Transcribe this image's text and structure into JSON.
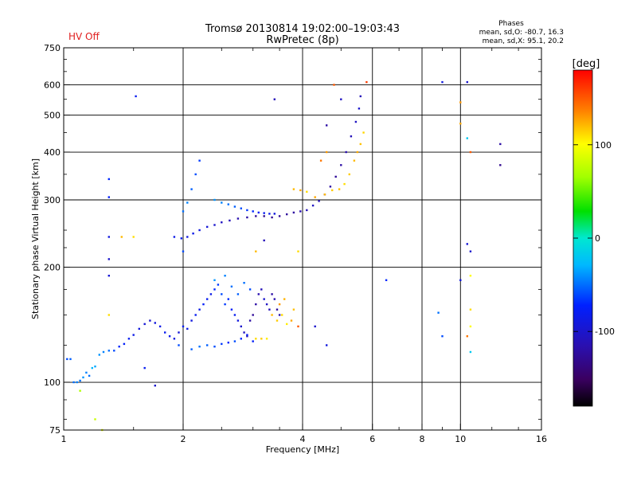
{
  "status": {
    "label": "HV Off",
    "color": "#e02020"
  },
  "header": {
    "title": "Tromsø 20130814 19:02:00–19:03:43",
    "subtitle": "RwPretec (8p)"
  },
  "phases_box": {
    "title": "Phases",
    "line_o": "mean, sd,O: -80.7, 16.3",
    "line_x": "mean, sd,X:  95.1, 20.2"
  },
  "colorbar": {
    "unit_label": "[deg]",
    "range": [
      -180,
      180
    ],
    "tick_labels": [
      "100",
      "0",
      "-100"
    ],
    "tick_values": [
      100,
      0,
      -100
    ]
  },
  "chart_data": {
    "type": "scatter",
    "title": "Tromsø 20130814 19:02:00–19:03:43",
    "subtitle": "RwPretec (8p)",
    "xlabel": "Frequency [MHz]",
    "ylabel": "Stationary phase Virtual Height [km]",
    "x_scale": "log",
    "y_scale": "log",
    "xlim": [
      1,
      16
    ],
    "ylim": [
      75,
      750
    ],
    "grid": true,
    "x_ticks": [
      1,
      2,
      4,
      6,
      8,
      10,
      16
    ],
    "x_tick_labels": [
      "1",
      "2",
      "4",
      "6",
      "8",
      "10",
      "16"
    ],
    "y_ticks": [
      75,
      100,
      200,
      300,
      400,
      500,
      600,
      750
    ],
    "y_tick_labels": [
      "75",
      "100",
      "200",
      "300",
      "400",
      "500",
      "600",
      "750"
    ],
    "color_scale": "phase [deg], -180 (black/violet) to 180 (red)",
    "points": [
      [
        1.02,
        115,
        -60
      ],
      [
        1.04,
        115,
        -55
      ],
      [
        1.06,
        100,
        -50
      ],
      [
        1.08,
        100,
        -45
      ],
      [
        1.1,
        101,
        -50
      ],
      [
        1.12,
        103,
        -40
      ],
      [
        1.14,
        106,
        -45
      ],
      [
        1.16,
        104,
        -50
      ],
      [
        1.18,
        109,
        -30
      ],
      [
        1.2,
        110,
        -35
      ],
      [
        1.23,
        118,
        -40
      ],
      [
        1.26,
        120,
        -45
      ],
      [
        1.3,
        121,
        -50
      ],
      [
        1.34,
        121,
        -60
      ],
      [
        1.38,
        124,
        -70
      ],
      [
        1.42,
        126,
        -75
      ],
      [
        1.46,
        130,
        -80
      ],
      [
        1.5,
        133,
        -85
      ],
      [
        1.55,
        138,
        -90
      ],
      [
        1.6,
        142,
        -95
      ],
      [
        1.65,
        145,
        -100
      ],
      [
        1.7,
        143,
        -90
      ],
      [
        1.75,
        140,
        -85
      ],
      [
        1.8,
        135,
        -80
      ],
      [
        1.85,
        132,
        -85
      ],
      [
        1.9,
        130,
        -90
      ],
      [
        1.95,
        135,
        -95
      ],
      [
        2.0,
        140,
        -80
      ],
      [
        2.05,
        138,
        -85
      ],
      [
        2.1,
        145,
        -90
      ],
      [
        2.15,
        150,
        -80
      ],
      [
        2.2,
        155,
        -85
      ],
      [
        2.25,
        160,
        -75
      ],
      [
        2.3,
        165,
        -80
      ],
      [
        2.35,
        170,
        -85
      ],
      [
        2.4,
        175,
        -70
      ],
      [
        2.45,
        180,
        -65
      ],
      [
        2.5,
        170,
        -60
      ],
      [
        2.55,
        160,
        -65
      ],
      [
        2.6,
        165,
        -70
      ],
      [
        2.65,
        155,
        -75
      ],
      [
        2.7,
        150,
        -80
      ],
      [
        2.75,
        145,
        -90
      ],
      [
        2.8,
        140,
        -100
      ],
      [
        2.85,
        135,
        -105
      ],
      [
        2.9,
        132,
        -110
      ],
      [
        2.95,
        145,
        -120
      ],
      [
        3.0,
        150,
        -125
      ],
      [
        3.05,
        160,
        -120
      ],
      [
        3.1,
        170,
        -115
      ],
      [
        3.15,
        175,
        -110
      ],
      [
        3.2,
        165,
        -100
      ],
      [
        3.25,
        160,
        -105
      ],
      [
        3.3,
        155,
        -110
      ],
      [
        3.35,
        170,
        -120
      ],
      [
        3.4,
        165,
        -115
      ],
      [
        3.45,
        155,
        -125
      ],
      [
        3.5,
        150,
        -115
      ],
      [
        1.95,
        125,
        -60
      ],
      [
        2.1,
        122,
        -55
      ],
      [
        2.2,
        124,
        -50
      ],
      [
        2.3,
        125,
        -55
      ],
      [
        2.4,
        124,
        -60
      ],
      [
        2.5,
        126,
        -65
      ],
      [
        2.6,
        127,
        -70
      ],
      [
        2.7,
        128,
        -60
      ],
      [
        2.8,
        130,
        -70
      ],
      [
        2.9,
        133,
        -80
      ],
      [
        3.0,
        128,
        -75
      ],
      [
        2.4,
        185,
        -40
      ],
      [
        2.55,
        190,
        -45
      ],
      [
        2.65,
        178,
        -50
      ],
      [
        2.75,
        170,
        -55
      ],
      [
        2.85,
        182,
        -50
      ],
      [
        2.95,
        175,
        -60
      ],
      [
        3.05,
        130,
        110
      ],
      [
        3.15,
        130,
        115
      ],
      [
        3.25,
        130,
        105
      ],
      [
        3.35,
        150,
        120
      ],
      [
        3.45,
        145,
        115
      ],
      [
        3.55,
        150,
        110
      ],
      [
        3.65,
        142,
        105
      ],
      [
        3.75,
        145,
        125
      ],
      [
        3.8,
        155,
        118
      ],
      [
        3.5,
        160,
        130
      ],
      [
        3.6,
        165,
        122
      ],
      [
        1.9,
        240,
        -85
      ],
      [
        1.98,
        238,
        -80
      ],
      [
        2.05,
        240,
        -90
      ],
      [
        2.12,
        245,
        -85
      ],
      [
        2.2,
        250,
        -90
      ],
      [
        2.3,
        255,
        -95
      ],
      [
        2.4,
        258,
        -100
      ],
      [
        2.5,
        262,
        -105
      ],
      [
        2.62,
        265,
        -110
      ],
      [
        2.75,
        268,
        -115
      ],
      [
        2.9,
        270,
        -120
      ],
      [
        3.05,
        272,
        -125
      ],
      [
        3.2,
        272,
        -130
      ],
      [
        3.35,
        270,
        -128
      ],
      [
        3.5,
        272,
        -126
      ],
      [
        3.65,
        275,
        -124
      ],
      [
        3.8,
        278,
        -122
      ],
      [
        3.95,
        280,
        -115
      ],
      [
        4.1,
        282,
        -110
      ],
      [
        4.25,
        290,
        -105
      ],
      [
        4.4,
        298,
        -110
      ],
      [
        4.55,
        310,
        -115
      ],
      [
        4.7,
        325,
        -120
      ],
      [
        4.85,
        345,
        -125
      ],
      [
        5.0,
        370,
        -120
      ],
      [
        5.15,
        400,
        -115
      ],
      [
        5.3,
        440,
        -110
      ],
      [
        5.45,
        480,
        -105
      ],
      [
        5.55,
        520,
        -100
      ],
      [
        5.6,
        560,
        -110
      ],
      [
        2.4,
        300,
        -40
      ],
      [
        2.5,
        295,
        -45
      ],
      [
        2.6,
        292,
        -50
      ],
      [
        2.7,
        288,
        -55
      ],
      [
        2.8,
        285,
        -60
      ],
      [
        2.9,
        282,
        -65
      ],
      [
        3.0,
        280,
        -70
      ],
      [
        3.1,
        278,
        -75
      ],
      [
        3.2,
        277,
        -80
      ],
      [
        3.3,
        276,
        -85
      ],
      [
        3.4,
        276,
        -90
      ],
      [
        3.8,
        320,
        120
      ],
      [
        3.95,
        318,
        125
      ],
      [
        4.1,
        315,
        110
      ],
      [
        4.3,
        305,
        125
      ],
      [
        4.55,
        310,
        120
      ],
      [
        4.75,
        318,
        115
      ],
      [
        4.95,
        320,
        118
      ],
      [
        5.1,
        330,
        110
      ],
      [
        5.25,
        350,
        115
      ],
      [
        5.4,
        380,
        120
      ],
      [
        5.5,
        400,
        125
      ],
      [
        5.6,
        420,
        118
      ],
      [
        5.7,
        450,
        112
      ],
      [
        4.45,
        380,
        140
      ],
      [
        4.6,
        400,
        130
      ],
      [
        4.8,
        600,
        150
      ],
      [
        5.8,
        610,
        160
      ],
      [
        2.0,
        280,
        -50
      ],
      [
        2.05,
        295,
        -45
      ],
      [
        2.1,
        320,
        -55
      ],
      [
        2.15,
        350,
        -60
      ],
      [
        2.2,
        380,
        -65
      ],
      [
        1.3,
        340,
        -70
      ],
      [
        1.3,
        305,
        -75
      ],
      [
        1.3,
        240,
        -90
      ],
      [
        1.3,
        210,
        -100
      ],
      [
        1.3,
        190,
        -95
      ],
      [
        1.52,
        560,
        -80
      ],
      [
        3.4,
        550,
        -110
      ],
      [
        4.6,
        470,
        -120
      ],
      [
        5.0,
        550,
        -105
      ],
      [
        9.0,
        610,
        -90
      ],
      [
        10.4,
        610,
        -100
      ],
      [
        12.6,
        420,
        -120
      ],
      [
        12.6,
        370,
        -130
      ],
      [
        10.0,
        540,
        130
      ],
      [
        10.0,
        475,
        125
      ],
      [
        10.4,
        435,
        -20
      ],
      [
        10.6,
        400,
        150
      ],
      [
        10.4,
        230,
        -95
      ],
      [
        10.6,
        220,
        -100
      ],
      [
        10.6,
        190,
        100
      ],
      [
        10.6,
        155,
        110
      ],
      [
        10.6,
        140,
        100
      ],
      [
        10.6,
        120,
        -20
      ],
      [
        10.4,
        132,
        140
      ],
      [
        10.0,
        185,
        -90
      ],
      [
        8.8,
        152,
        -50
      ],
      [
        9.0,
        132,
        -60
      ],
      [
        6.5,
        185,
        -70
      ],
      [
        4.6,
        125,
        -90
      ],
      [
        4.3,
        140,
        -100
      ],
      [
        3.9,
        140,
        150
      ],
      [
        3.9,
        220,
        110
      ],
      [
        3.05,
        220,
        120
      ],
      [
        3.2,
        235,
        -110
      ],
      [
        1.4,
        240,
        120
      ],
      [
        1.5,
        240,
        110
      ],
      [
        1.2,
        80,
        80
      ],
      [
        1.25,
        75,
        90
      ],
      [
        1.1,
        95,
        70
      ],
      [
        1.3,
        150,
        110
      ],
      [
        1.7,
        98,
        -100
      ],
      [
        1.6,
        109,
        -80
      ],
      [
        2.0,
        220,
        -60
      ]
    ]
  }
}
